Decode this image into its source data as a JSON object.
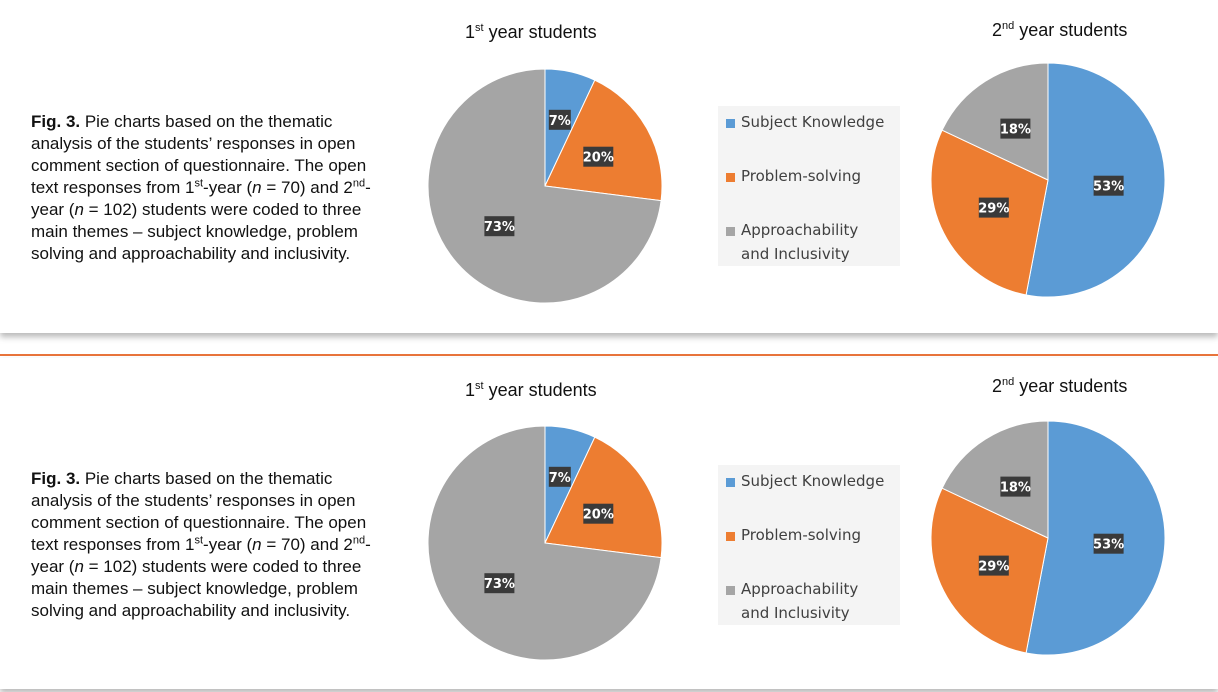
{
  "colors": {
    "subject_knowledge": "#5b9bd5",
    "problem_solving": "#ed7d31",
    "approachability": "#a5a5a5",
    "divider": "#e8743b",
    "label_bg": "#3a3a3a"
  },
  "figures": [
    {
      "caption": {
        "fig_label": "Fig. 3.",
        "part1": " Pie charts based on the thematic analysis of the students’ responses in open comment section of questionnaire. The open text responses from 1",
        "sup1": "st",
        "part2": "-year (",
        "n1_symbol": "n",
        "n1_value": " = 70) and 2",
        "sup2": "nd",
        "part3": "-year (",
        "n2_symbol": "n",
        "n2_value": " = 102) students were coded to three main themes – subject knowledge, problem solving and approachability and inclusivity."
      },
      "legend": [
        "Subject Knowledge",
        "Problem-solving",
        "Approachability and Inclusivity"
      ]
    },
    {
      "caption": {
        "fig_label": "Fig. 3.",
        "part1": " Pie charts based on the thematic analysis of the students’ responses in open comment section of questionnaire. The open text responses from 1",
        "sup1": "st",
        "part2": "-year (",
        "n1_symbol": "n",
        "n1_value": " = 70) and 2",
        "sup2": "nd",
        "part3": "-year (",
        "n2_symbol": "n",
        "n2_value": " = 102) students were coded to three main themes – subject knowledge, problem solving and approachability and inclusivity."
      },
      "legend": [
        "Subject Knowledge",
        "Problem-solving",
        "Approachability and Inclusivity"
      ]
    }
  ],
  "chart_data": [
    {
      "type": "pie",
      "title_num": "1",
      "title_sup": "st",
      "title_rest": " year students",
      "categories": [
        "Subject Knowledge",
        "Problem-solving",
        "Approachability and Inclusivity"
      ],
      "values": [
        7,
        20,
        73
      ],
      "labels": [
        "7%",
        "20%",
        "73%"
      ]
    },
    {
      "type": "pie",
      "title_num": "2",
      "title_sup": "nd",
      "title_rest": "  year students",
      "categories": [
        "Subject Knowledge",
        "Problem-solving",
        "Approachability and Inclusivity"
      ],
      "values": [
        53,
        29,
        18
      ],
      "labels": [
        "53%",
        "29%",
        "18%"
      ]
    },
    {
      "type": "pie",
      "title_num": "1",
      "title_sup": "st",
      "title_rest": " year students",
      "categories": [
        "Subject Knowledge",
        "Problem-solving",
        "Approachability and Inclusivity"
      ],
      "values": [
        7,
        20,
        73
      ],
      "labels": [
        "7%",
        "20%",
        "73%"
      ]
    },
    {
      "type": "pie",
      "title_num": "2",
      "title_sup": "nd",
      "title_rest": "  year students",
      "categories": [
        "Subject Knowledge",
        "Problem-solving",
        "Approachability and Inclusivity"
      ],
      "values": [
        53,
        29,
        18
      ],
      "labels": [
        "53%",
        "29%",
        "18%"
      ]
    }
  ]
}
